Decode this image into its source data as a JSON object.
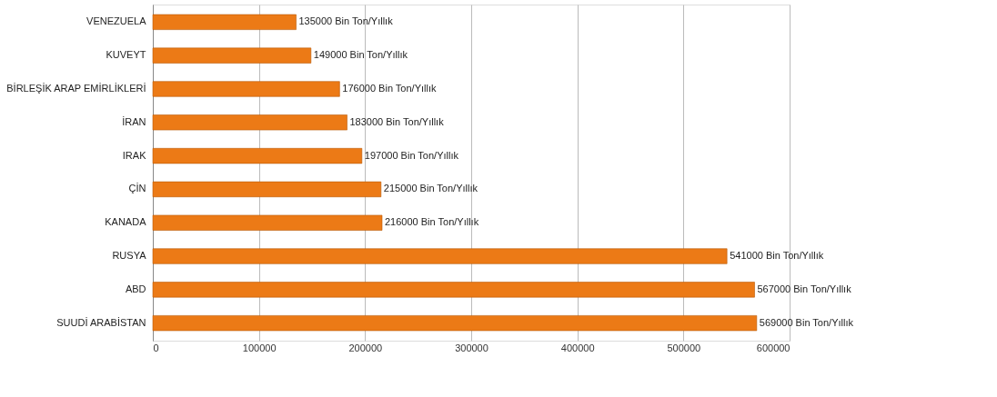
{
  "chart_data": {
    "type": "bar",
    "orientation": "horizontal",
    "categories": [
      "VENEZUELA",
      "KUVEYT",
      "BİRLEŞİK ARAP EMİRLİKLERİ",
      "İRAN",
      "IRAK",
      "ÇİN",
      "KANADA",
      "RUSYA",
      "ABD",
      "SUUDİ ARABİSTAN"
    ],
    "values": [
      135000,
      149000,
      176000,
      183000,
      197000,
      215000,
      216000,
      541000,
      567000,
      569000
    ],
    "value_labels": [
      "135000 Bin Ton/Yıllık",
      "149000 Bin Ton/Yıllık",
      "176000 Bin Ton/Yıllık",
      "183000 Bin Ton/Yıllık",
      "197000 Bin Ton/Yıllık",
      "215000 Bin Ton/Yıllık",
      "216000 Bin Ton/Yıllık",
      "541000 Bin Ton/Yıllık",
      "567000 Bin Ton/Yıllık",
      "569000 Bin Ton/Yıllık"
    ],
    "color": "#ec7a16",
    "xlim": [
      0,
      600000
    ],
    "xticks": [
      0,
      100000,
      200000,
      300000,
      400000,
      500000,
      600000
    ],
    "grid": "x"
  }
}
